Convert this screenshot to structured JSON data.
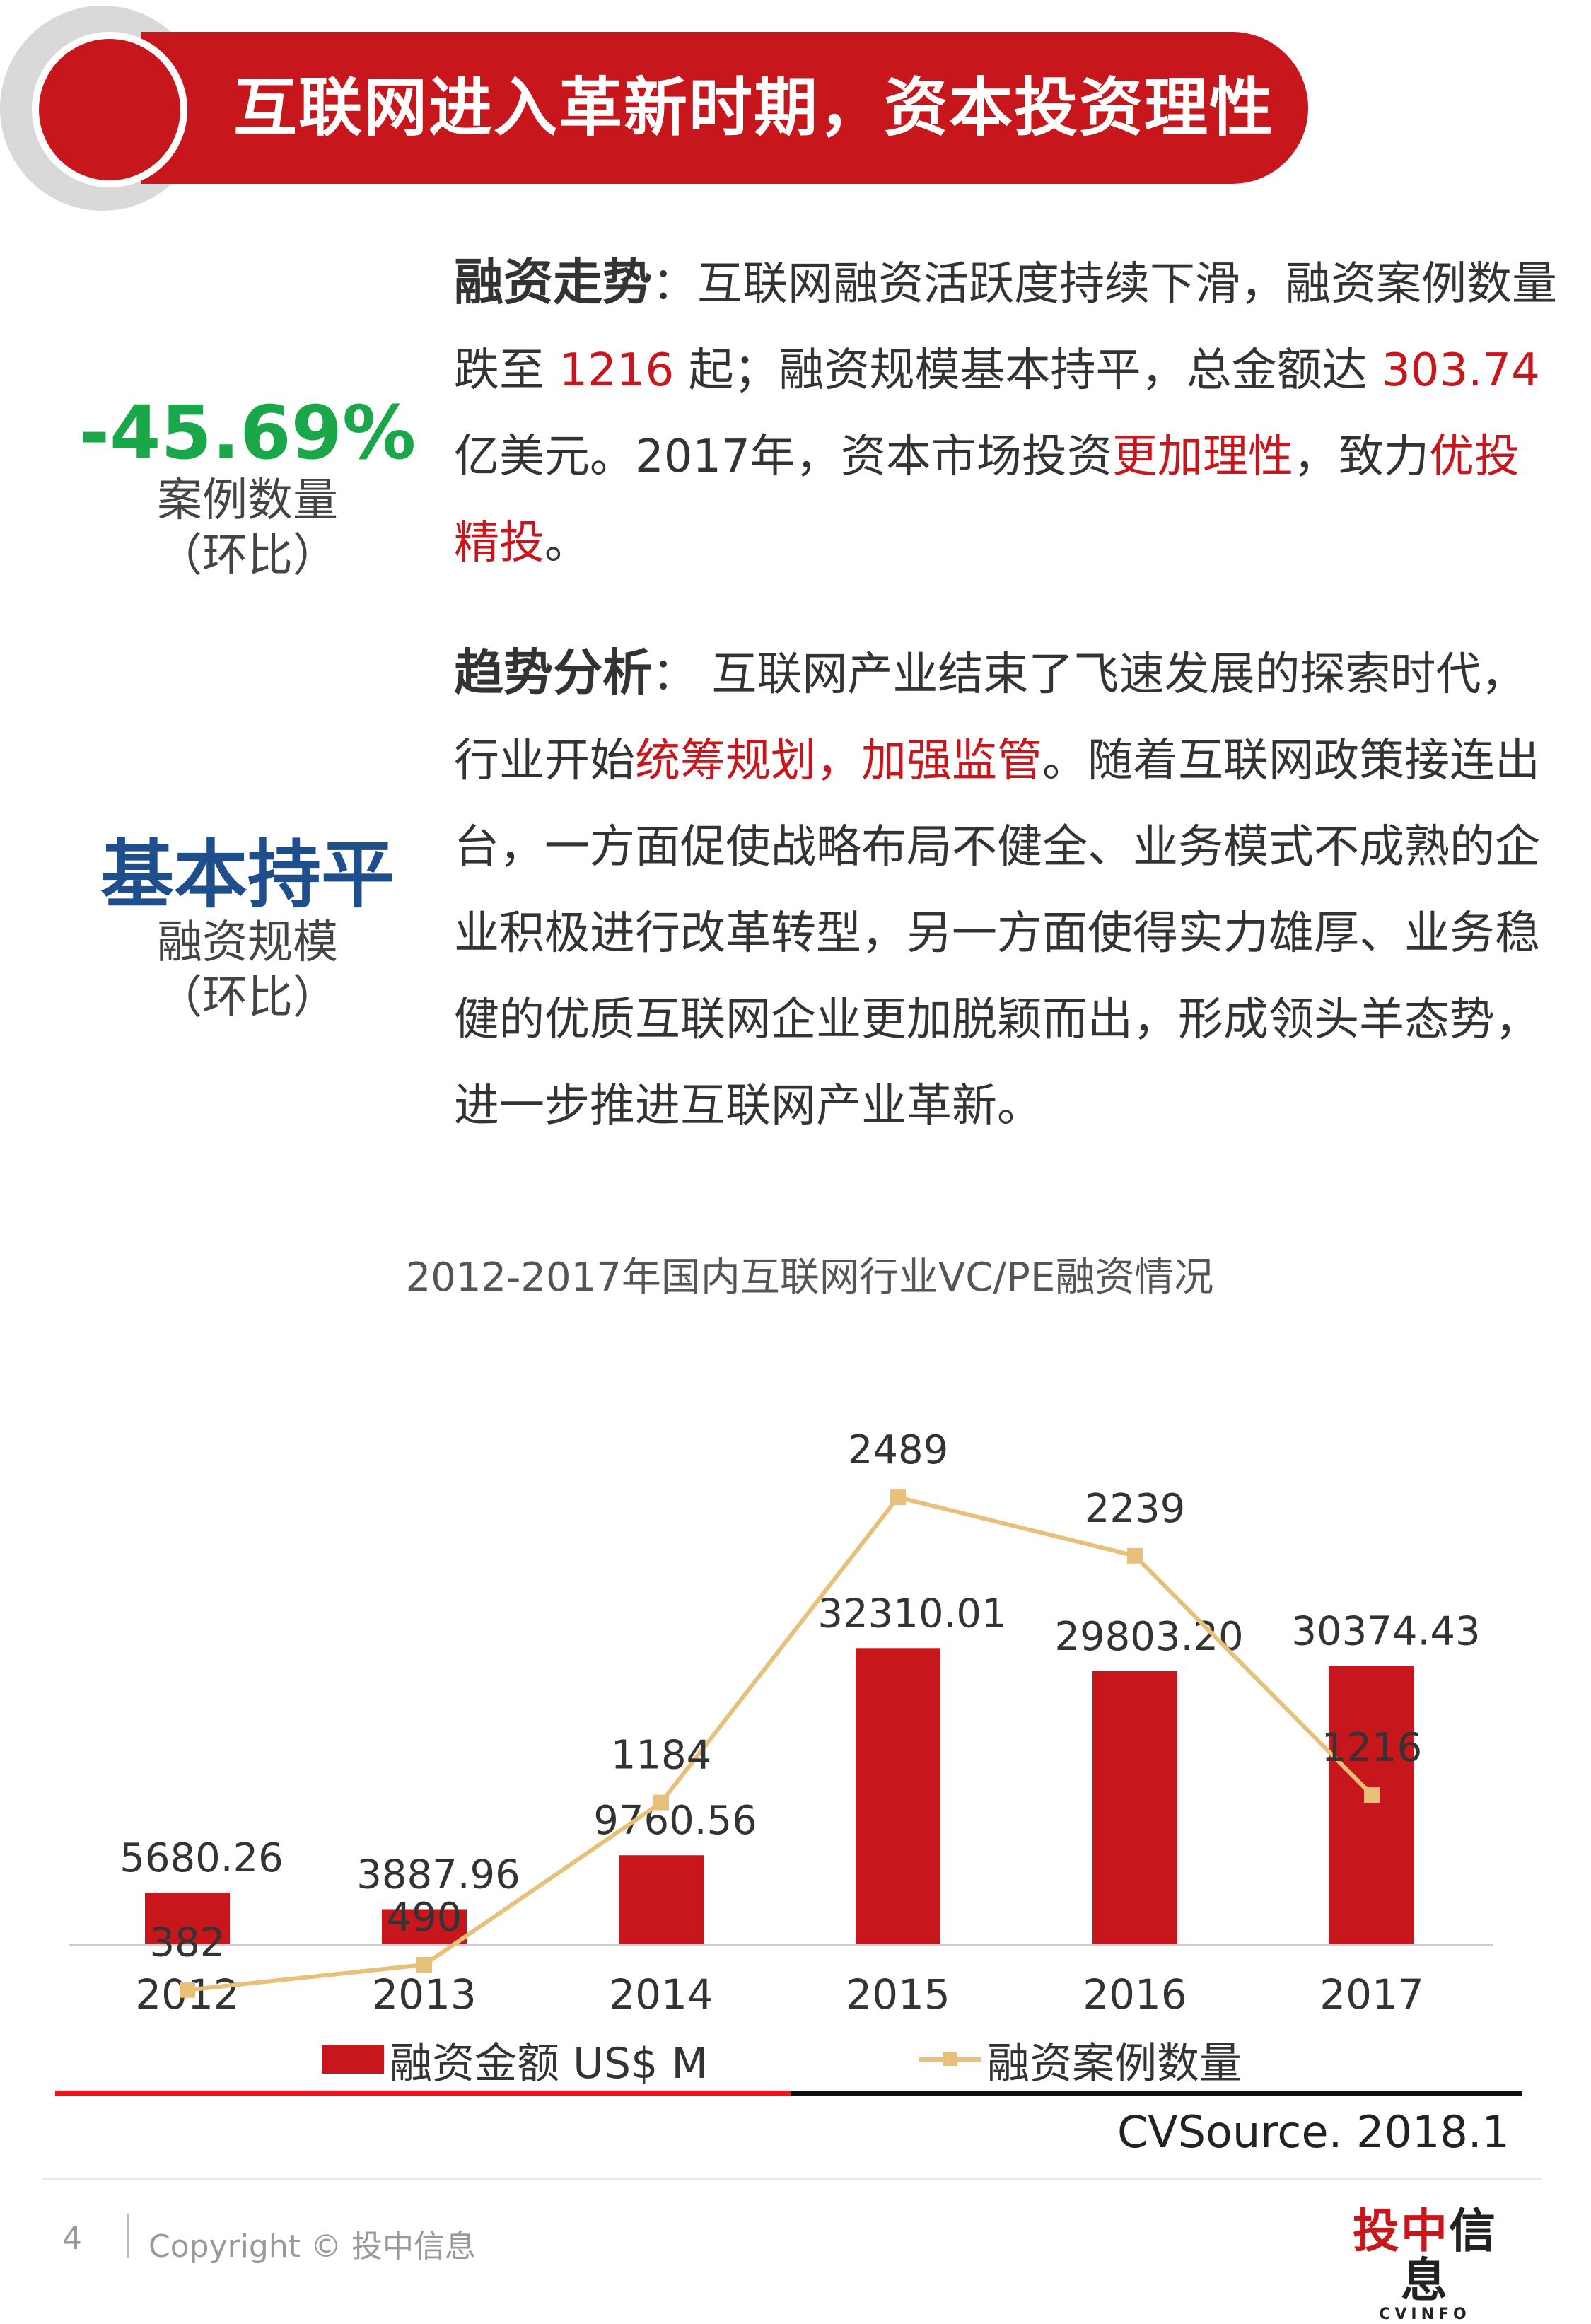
{
  "header": {
    "title": "互联网进入革新时期，资本投资理性"
  },
  "stats": [
    {
      "value": "-45.69%",
      "label": "案例数量",
      "note": "（环比）"
    },
    {
      "value": "基本持平",
      "label": "融资规模",
      "note": "（环比）"
    }
  ],
  "para1": {
    "label": "融资走势",
    "sep": "：",
    "t1": "互联网融资活跃度持续下滑，融资案例数量跌至 ",
    "n1": "1216",
    "t2": " 起；融资规模基本持平，总金额达 ",
    "n2": "303.74",
    "t3": " 亿美元。2017年，资本市场投资",
    "h1": "更加理性",
    "t4": "，致力",
    "h2": "优投精投",
    "t5": "。"
  },
  "para2": {
    "label": "趋势分析",
    "sep": "：",
    "t1": " 互联网产业结束了飞速发展的探索时代，行业开始",
    "h1": "统筹规划，加强监管",
    "t2": "。随着互联网政策接连出台，一方面促使战略布局不健全、业务模式不成熟的企业积极进行改革转型，另一方面使得实力雄厚、业务稳健的优质互联网企业更加脱颖而出，形成领头羊态势，进一步推进互联网产业革新。"
  },
  "chart_data": {
    "type": "bar",
    "title": "2012-2017年国内互联网行业VC/PE融资情况",
    "categories": [
      "2012",
      "2013",
      "2014",
      "2015",
      "2016",
      "2017"
    ],
    "series": [
      {
        "name": "融资金额 US$ M",
        "type": "bar",
        "values": [
          5680.26,
          3887.96,
          9760.56,
          32310.01,
          29803.2,
          30374.43
        ],
        "labels": [
          "5680.26",
          "3887.96",
          "9760.56",
          "32310.01",
          "29803.20",
          "30374.43"
        ],
        "color": "#c8161d"
      },
      {
        "name": "融资案例数量",
        "type": "line",
        "values": [
          382,
          490,
          1184,
          2489,
          2239,
          1216
        ],
        "labels": [
          "382",
          "490",
          "1184",
          "2489",
          "2239",
          "1216"
        ],
        "color": "#e8c07a"
      }
    ],
    "legend": "bottom",
    "grid": false
  },
  "source": "CVSource. 2018.1",
  "footer": {
    "page": "4",
    "copyright": "Copyright © 投中信息",
    "logo_cn_a": "投中",
    "logo_cn_b": "信息",
    "logo_en": "CVINFO"
  }
}
